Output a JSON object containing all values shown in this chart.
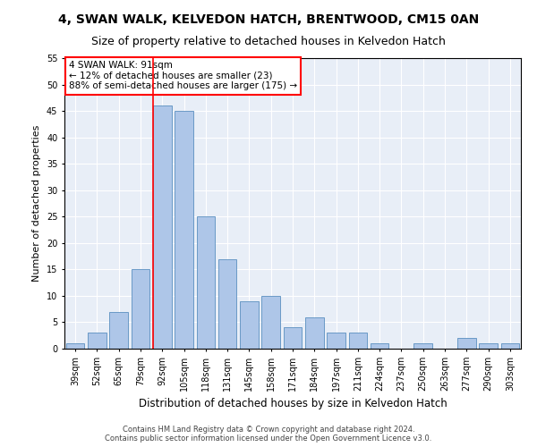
{
  "title": "4, SWAN WALK, KELVEDON HATCH, BRENTWOOD, CM15 0AN",
  "subtitle": "Size of property relative to detached houses in Kelvedon Hatch",
  "xlabel": "Distribution of detached houses by size in Kelvedon Hatch",
  "ylabel": "Number of detached properties",
  "categories": [
    "39sqm",
    "52sqm",
    "65sqm",
    "79sqm",
    "92sqm",
    "105sqm",
    "118sqm",
    "131sqm",
    "145sqm",
    "158sqm",
    "171sqm",
    "184sqm",
    "197sqm",
    "211sqm",
    "224sqm",
    "237sqm",
    "250sqm",
    "263sqm",
    "277sqm",
    "290sqm",
    "303sqm"
  ],
  "values": [
    1,
    3,
    7,
    15,
    46,
    45,
    25,
    17,
    9,
    10,
    4,
    6,
    3,
    3,
    1,
    0,
    1,
    0,
    2,
    1,
    1
  ],
  "bar_color": "#aec6e8",
  "bar_edge_color": "#5a8fc0",
  "red_line_index": 4,
  "annotation_text": "4 SWAN WALK: 91sqm\n← 12% of detached houses are smaller (23)\n88% of semi-detached houses are larger (175) →",
  "annotation_box_color": "white",
  "annotation_box_edge": "red",
  "footer_text": "Contains HM Land Registry data © Crown copyright and database right 2024.\nContains public sector information licensed under the Open Government Licence v3.0.",
  "ylim": [
    0,
    55
  ],
  "yticks": [
    0,
    5,
    10,
    15,
    20,
    25,
    30,
    35,
    40,
    45,
    50,
    55
  ],
  "background_color": "#e8eef7",
  "grid_color": "white",
  "fig_width": 6.0,
  "fig_height": 5.0,
  "title_fontsize": 10,
  "subtitle_fontsize": 9,
  "xlabel_fontsize": 8.5,
  "ylabel_fontsize": 8,
  "tick_fontsize": 7,
  "annotation_fontsize": 7.5,
  "footer_fontsize": 6
}
